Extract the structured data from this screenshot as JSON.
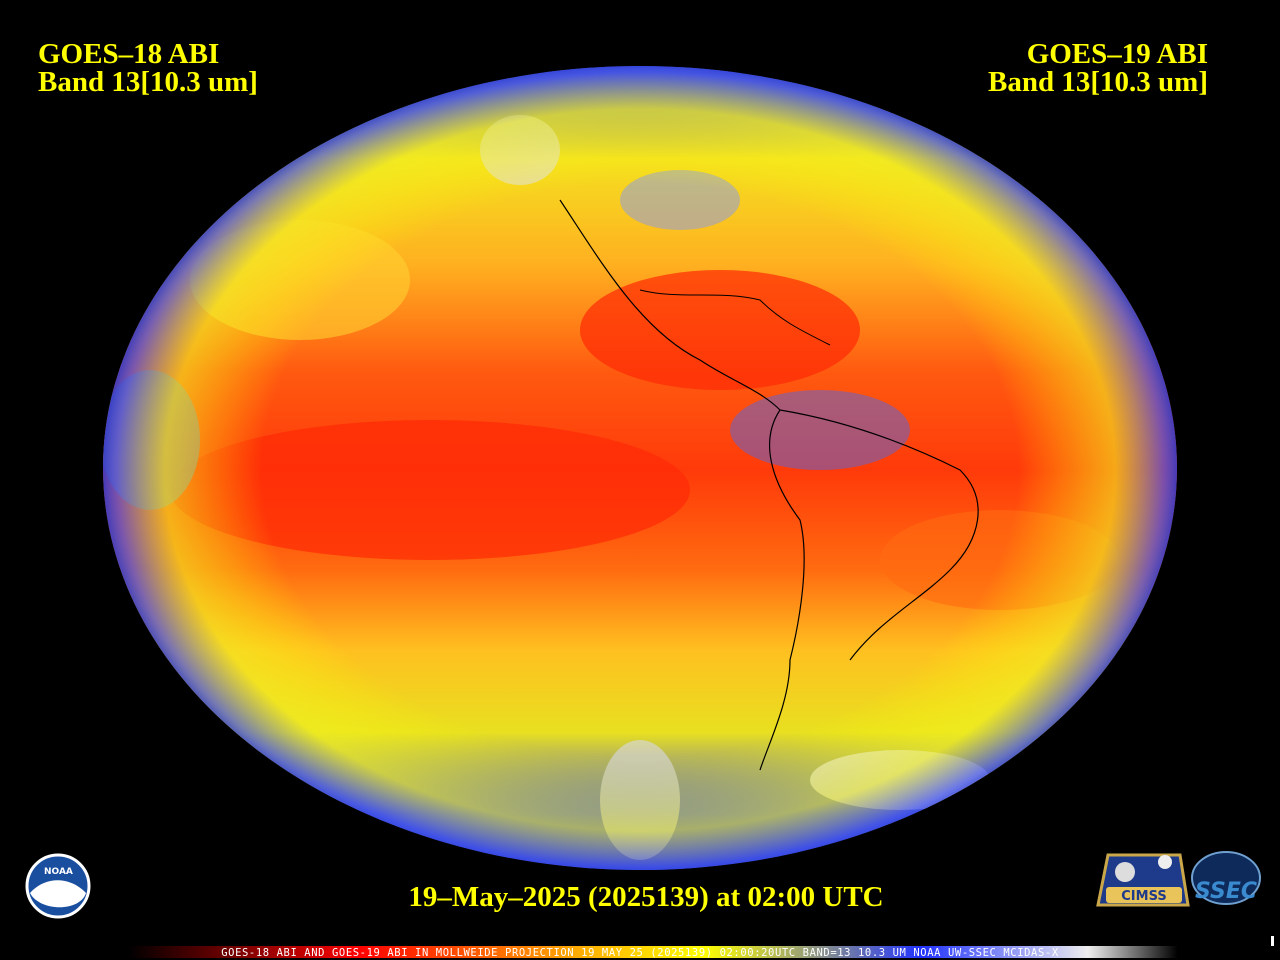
{
  "header": {
    "left": {
      "satellite": "GOES–18 ABI",
      "band": "Band 13[10.3 um]"
    },
    "right": {
      "satellite": "GOES–19 ABI",
      "band": "Band 13[10.3 um]"
    }
  },
  "timestamp": "19–May–2025 (2025139) at 02:00 UTC",
  "footer": "GOES-18 ABI AND GOES-19 ABI IN MOLLWEIDE PROJECTION 19 MAY 25 (2025139) 02:00:20UTC BAND=13 10.3 UM NOAA UW-SSEC MCIDAS-X",
  "logos": {
    "noaa": "NOAA",
    "cimss": "CIMSS",
    "ssec": "SSEC"
  }
}
